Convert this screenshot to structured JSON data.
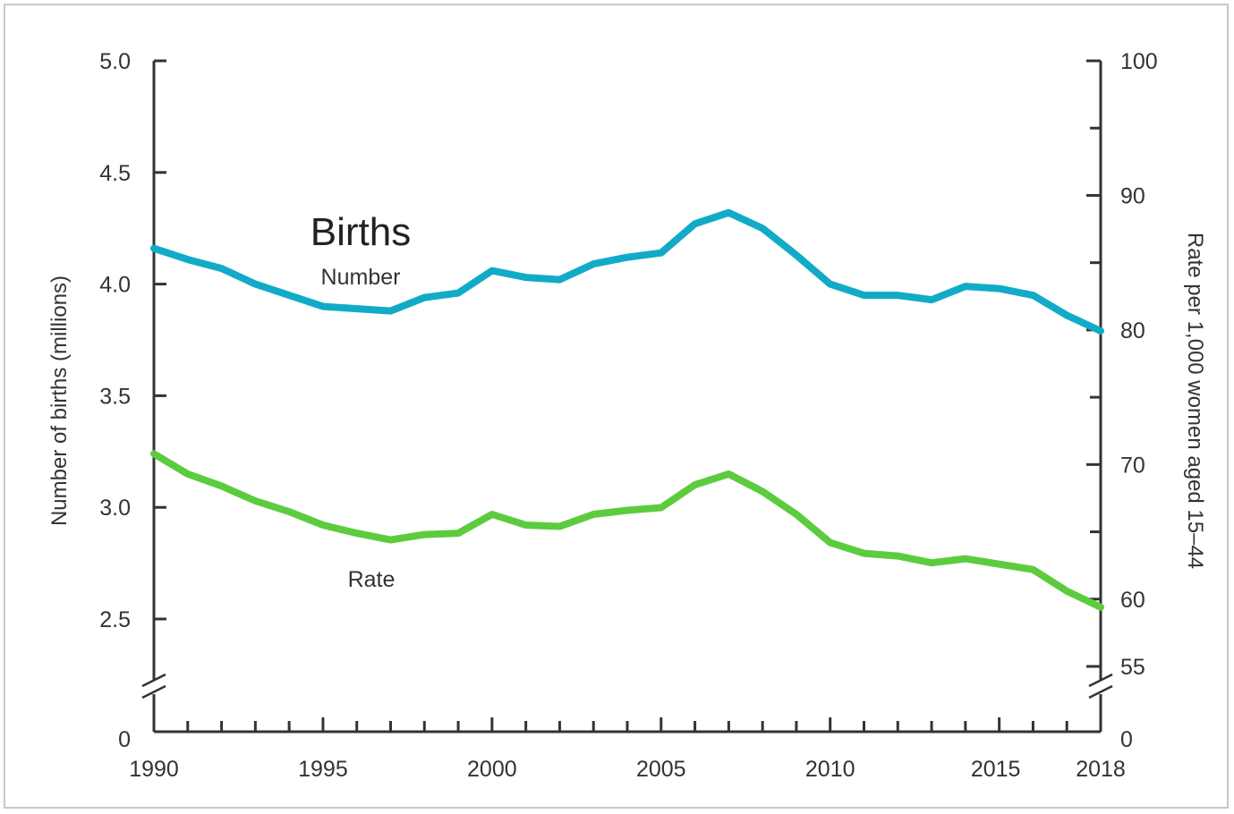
{
  "chart_data": {
    "type": "line",
    "title": "Births",
    "x_label": "",
    "y_label_left": "Number of births (millions)",
    "y_label_right": "Rate per 1,000 women aged 15–44",
    "x_range": [
      1990,
      2018
    ],
    "x_ticks_labeled": [
      1990,
      1995,
      2000,
      2005,
      2010,
      2015,
      2018
    ],
    "y_left_ticks": [
      "5.0",
      "4.5",
      "4.0",
      "3.5",
      "3.0",
      "2.5",
      "0"
    ],
    "y_left_range": [
      2.0,
      5.0
    ],
    "y_left_axis_break": true,
    "y_right_ticks": [
      "100",
      "90",
      "80",
      "70",
      "60",
      "55",
      "0"
    ],
    "y_right_range": [
      50,
      100
    ],
    "y_right_axis_break": true,
    "x": [
      1990,
      1991,
      1992,
      1993,
      1994,
      1995,
      1996,
      1997,
      1998,
      1999,
      2000,
      2001,
      2002,
      2003,
      2004,
      2005,
      2006,
      2007,
      2008,
      2009,
      2010,
      2011,
      2012,
      2013,
      2014,
      2015,
      2016,
      2017,
      2018
    ],
    "series": [
      {
        "name": "Number",
        "axis": "left",
        "color": "#12abc7",
        "values": [
          4.16,
          4.11,
          4.07,
          4.0,
          3.95,
          3.9,
          3.89,
          3.88,
          3.94,
          3.96,
          4.06,
          4.03,
          4.02,
          4.09,
          4.12,
          4.14,
          4.27,
          4.32,
          4.25,
          4.13,
          4.0,
          3.95,
          3.95,
          3.93,
          3.99,
          3.98,
          3.95,
          3.86,
          3.79
        ]
      },
      {
        "name": "Rate",
        "axis": "right",
        "color": "#5ccc3e",
        "values": [
          70.8,
          69.3,
          68.4,
          67.3,
          66.5,
          65.5,
          64.9,
          64.4,
          64.8,
          64.9,
          66.3,
          65.5,
          65.4,
          66.3,
          66.6,
          66.8,
          68.5,
          69.3,
          68.0,
          66.3,
          64.2,
          63.4,
          63.2,
          62.7,
          63.0,
          62.6,
          62.2,
          60.6,
          59.4
        ]
      }
    ],
    "grid": false,
    "legend": "none"
  }
}
